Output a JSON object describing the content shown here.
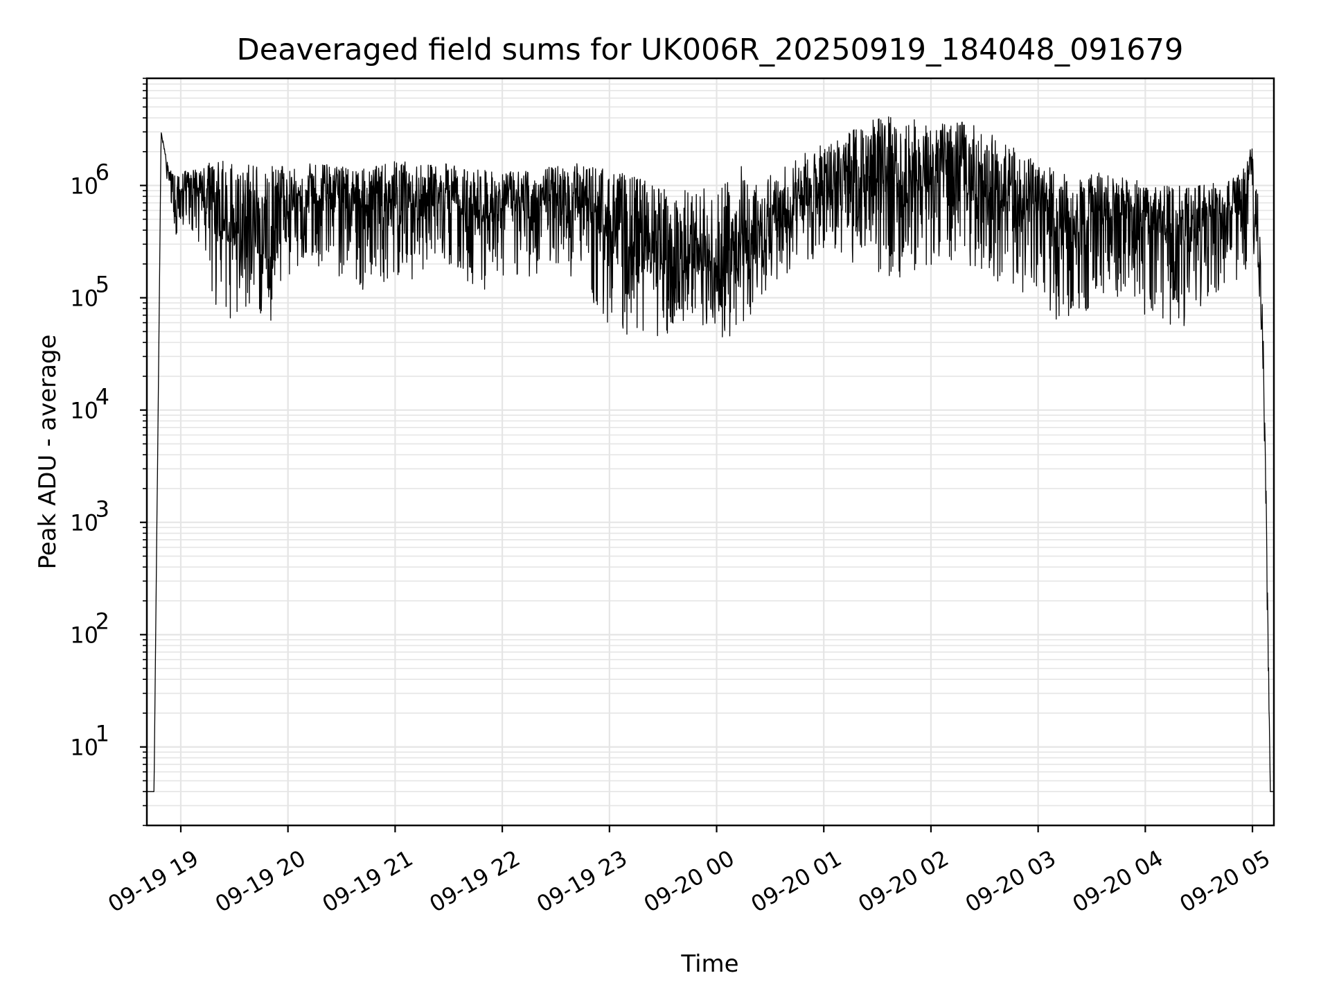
{
  "chart_data": {
    "type": "line",
    "title": "Deaveraged field sums for UK006R_20250919_184048_091679",
    "xlabel": "Time",
    "ylabel": "Peak ADU - average",
    "yscale": "log",
    "ylim": [
      2,
      9000000
    ],
    "xlim": [
      "2025-09-19 18:41",
      "2025-09-20 05:12"
    ],
    "grid": true,
    "line_color": "#000000",
    "grid_color": "#e5e5e5",
    "x_ticks": [
      "09-19 19",
      "09-19 20",
      "09-19 21",
      "09-19 22",
      "09-19 23",
      "09-20 00",
      "09-20 01",
      "09-20 02",
      "09-20 03",
      "09-20 04",
      "09-20 05"
    ],
    "y_ticks": [
      {
        "base": "10",
        "exp": "1",
        "value": 10
      },
      {
        "base": "10",
        "exp": "2",
        "value": 100
      },
      {
        "base": "10",
        "exp": "3",
        "value": 1000
      },
      {
        "base": "10",
        "exp": "4",
        "value": 10000
      },
      {
        "base": "10",
        "exp": "5",
        "value": 100000
      },
      {
        "base": "10",
        "exp": "6",
        "value": 1000000
      }
    ],
    "series": [
      {
        "x": [
          "2025-09-19 18:41",
          "2025-09-19 18:45",
          "2025-09-19 18:49",
          "2025-09-19 18:53",
          "2025-09-19 18:57",
          "2025-09-19 19:00",
          "2025-09-19 19:10",
          "2025-09-19 19:20",
          "2025-09-19 19:30",
          "2025-09-19 19:40",
          "2025-09-19 19:50",
          "2025-09-19 20:00",
          "2025-09-19 20:15",
          "2025-09-19 20:30",
          "2025-09-19 20:45",
          "2025-09-19 21:00",
          "2025-09-19 21:15",
          "2025-09-19 21:30",
          "2025-09-19 21:45",
          "2025-09-19 22:00",
          "2025-09-19 22:15",
          "2025-09-19 22:30",
          "2025-09-19 22:45",
          "2025-09-19 23:00",
          "2025-09-19 23:15",
          "2025-09-19 23:30",
          "2025-09-19 23:45",
          "2025-09-20 00:00",
          "2025-09-20 00:15",
          "2025-09-20 00:25",
          "2025-09-20 00:35",
          "2025-09-20 00:50",
          "2025-09-20 01:05",
          "2025-09-20 01:20",
          "2025-09-20 01:35",
          "2025-09-20 01:50",
          "2025-09-20 02:05",
          "2025-09-20 02:20",
          "2025-09-20 02:35",
          "2025-09-20 02:50",
          "2025-09-20 03:05",
          "2025-09-20 03:20",
          "2025-09-20 03:35",
          "2025-09-20 03:50",
          "2025-09-20 04:05",
          "2025-09-20 04:20",
          "2025-09-20 04:35",
          "2025-09-20 04:50",
          "2025-09-20 05:00",
          "2025-09-20 05:03",
          "2025-09-20 05:06",
          "2025-09-20 05:08",
          "2025-09-20 05:10",
          "2025-09-20 05:12"
        ],
        "y": [
          4,
          4,
          3000000,
          1300000,
          600000,
          800000,
          900000,
          500000,
          300000,
          400000,
          350000,
          600000,
          700000,
          800000,
          600000,
          700000,
          600000,
          800000,
          500000,
          650000,
          600000,
          800000,
          700000,
          400000,
          250000,
          200000,
          180000,
          150000,
          200000,
          300000,
          500000,
          700000,
          900000,
          1000000,
          1200000,
          900000,
          1100000,
          1000000,
          800000,
          600000,
          400000,
          300000,
          500000,
          600000,
          400000,
          350000,
          500000,
          600000,
          700000,
          300000,
          30000,
          500,
          4,
          4
        ],
        "low": [
          4,
          4,
          3000000,
          900000,
          350000,
          400000,
          300000,
          80000,
          60000,
          70000,
          60000,
          150000,
          200000,
          150000,
          100000,
          150000,
          120000,
          200000,
          100000,
          150000,
          150000,
          200000,
          120000,
          50000,
          45000,
          45000,
          45000,
          40000,
          50000,
          100000,
          150000,
          200000,
          200000,
          200000,
          150000,
          150000,
          200000,
          200000,
          150000,
          100000,
          60000,
          60000,
          100000,
          100000,
          50000,
          50000,
          80000,
          100000,
          200000,
          150000,
          20000,
          200,
          4,
          4
        ],
        "high": [
          4,
          4,
          3000000,
          1500000,
          1200000,
          1300000,
          1500000,
          1700000,
          1700000,
          1600000,
          1500000,
          1500000,
          1600000,
          1500000,
          1400000,
          1700000,
          1500000,
          1600000,
          1400000,
          1300000,
          1400000,
          1500000,
          1600000,
          1400000,
          1200000,
          1000000,
          900000,
          1000000,
          1600000,
          1200000,
          1400000,
          2000000,
          2500000,
          3500000,
          4300000,
          4000000,
          3500000,
          3800000,
          2800000,
          2000000,
          1500000,
          1200000,
          1300000,
          1200000,
          1000000,
          1000000,
          1100000,
          1200000,
          2400000,
          1000000,
          60000,
          1200,
          4,
          4
        ]
      }
    ]
  }
}
